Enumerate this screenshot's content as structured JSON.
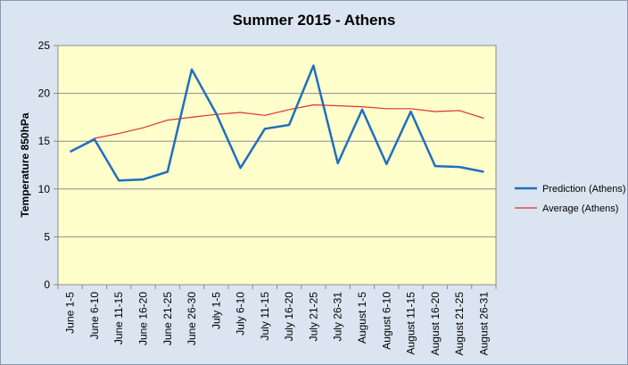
{
  "chart_data": {
    "type": "line",
    "title": "Summer 2015 - Athens",
    "xlabel": "",
    "ylabel": "Temperature 850hPa",
    "ylim": [
      0,
      25
    ],
    "yticks": [
      0,
      5,
      10,
      15,
      20,
      25
    ],
    "grid": "horizontal",
    "legend_position": "right",
    "categories": [
      "June 1-5",
      "June 6-10",
      "June 11-15",
      "June 16-20",
      "June 21-25",
      "June 26-30",
      "July 1-5",
      "July 6-10",
      "July 11-15",
      "July 16-20",
      "July 21-25",
      "July 26-31",
      "August 1-5",
      "August 6-10",
      "August 11-15",
      "August 16-20",
      "August 21-25",
      "August 26-31"
    ],
    "series": [
      {
        "name": "Prediction (Athens)",
        "color": "#1f6fbf",
        "values": [
          13.9,
          15.2,
          10.9,
          11.0,
          11.8,
          22.5,
          17.9,
          12.2,
          16.3,
          16.7,
          22.9,
          12.7,
          18.3,
          12.6,
          18.1,
          12.4,
          12.3,
          11.8
        ]
      },
      {
        "name": "Average (Athens)",
        "color": "#e03030",
        "values": [
          13.9,
          15.3,
          15.8,
          16.4,
          17.2,
          17.5,
          17.8,
          18.0,
          17.7,
          18.3,
          18.8,
          18.7,
          18.6,
          18.4,
          18.4,
          18.1,
          18.2,
          17.4
        ]
      }
    ]
  }
}
